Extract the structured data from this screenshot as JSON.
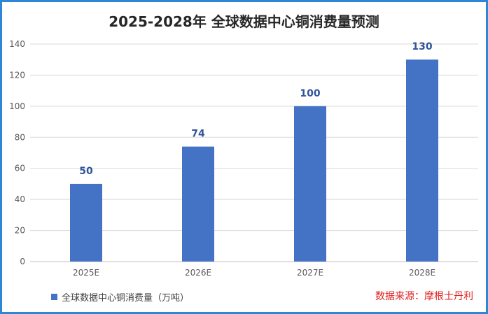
{
  "chart_data": {
    "type": "bar",
    "title": "2025-2028年 全球数据中心铜消费量预测",
    "categories": [
      "2025E",
      "2026E",
      "2027E",
      "2028E"
    ],
    "series": [
      {
        "name": "全球数据中心铜消费量（万吨）",
        "values": [
          50,
          74,
          100,
          130
        ]
      }
    ],
    "ylim": [
      0,
      140
    ],
    "yticks": [
      0,
      20,
      40,
      60,
      80,
      100,
      120,
      140
    ],
    "grid": true,
    "legend": "bottom-left",
    "bar_color": "#4472c4",
    "label_color": "#2f5597"
  },
  "source": "数据来源：摩根士丹利"
}
